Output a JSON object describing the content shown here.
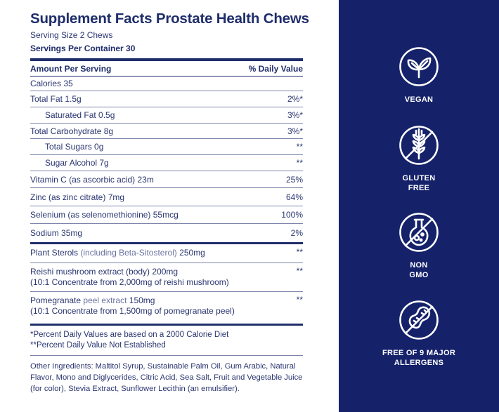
{
  "facts": {
    "title": "Supplement Facts Prostate Health Chews",
    "serving_size": "Serving Size 2 Chews",
    "servings_per_container": "Servings Per Container 30",
    "header_amount": "Amount Per Serving",
    "header_dv": "% Daily Value",
    "rows": [
      {
        "name": "Calories 35",
        "dv": ""
      },
      {
        "name": "Total Fat 1.5g",
        "dv": "2%*"
      },
      {
        "name": "Saturated Fat 0.5g",
        "dv": "3%*"
      },
      {
        "name": "Total Carbohydrate 8g",
        "dv": "3%*"
      },
      {
        "name": "Total Sugars 0g",
        "dv": "**"
      },
      {
        "name": "Sugar Alcohol 7g",
        "dv": "**"
      },
      {
        "name": "Vitamin C (as ascorbic acid) 23m",
        "dv": "25%"
      },
      {
        "name": "Zinc (as zinc citrate) 7mg",
        "dv": "64%"
      },
      {
        "name": "Selenium (as selenomethionine) 55mcg",
        "dv": "100%"
      },
      {
        "name": "Sodium 35mg",
        "dv": "2%"
      }
    ],
    "extracts": [
      {
        "line1_main": "Plant Sterols",
        "line1_paren": "(including Beta-Sitosterol)",
        "line1_amount": "250mg",
        "line2": "",
        "dv": "**"
      },
      {
        "line1_main": "Reishi mushroom extract (body)",
        "line1_paren": "",
        "line1_amount": "200mg",
        "line2": "(10:1 Concentrate from 2,000mg of reishi mushroom)",
        "dv": "**"
      },
      {
        "line1_main": "Pomegranate",
        "line1_paren": "peel extract",
        "line1_amount": "150mg",
        "line2": "(10:1 Concentrate from 1,500mg of pomegranate peel)",
        "dv": "**"
      }
    ],
    "footnote_1": "*Percent Daily Values are based on a 2000 Calorie Diet",
    "footnote_2": "**Percent Daily Value Not Established",
    "ingredients": "Other Ingredients: Maltitol Syrup, Sustainable Palm Oil, Gum Arabic, Natural Flavor, Mono and Diglycerides, Citric Acid, Sea Salt, Fruit and Vegetable Juice (for color), Stevia Extract, Sunflower Lecithin (an emulsifier)."
  },
  "badges": [
    {
      "icon": "vegan-leaf-icon",
      "label_1": "VEGAN",
      "label_2": ""
    },
    {
      "icon": "gluten-free-wheat-icon",
      "label_1": "GLUTEN",
      "label_2": "FREE"
    },
    {
      "icon": "non-gmo-flask-icon",
      "label_1": "NON",
      "label_2": "GMO"
    },
    {
      "icon": "allergen-free-peanut-icon",
      "label_1": "FREE OF 9 MAJOR",
      "label_2": "ALLERGENS"
    }
  ],
  "colors": {
    "panel": "#15226a",
    "text_navy": "#1f2d6b",
    "badge_text": "#ffffff"
  }
}
